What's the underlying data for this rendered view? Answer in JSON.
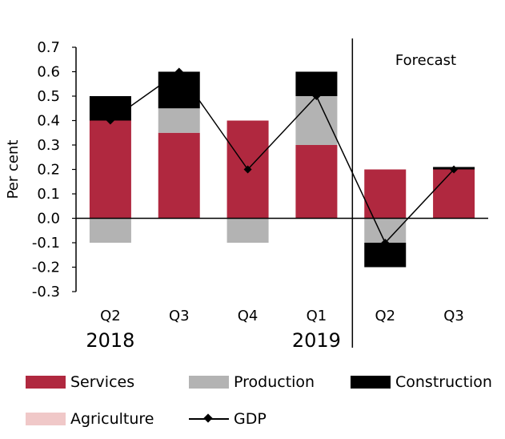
{
  "colors": {
    "services": "#b0283f",
    "production": "#b3b3b3",
    "construction": "#000000",
    "agriculture": "#f0c8c8",
    "gdp": "#000000"
  },
  "chart_data": {
    "type": "bar",
    "stacked": true,
    "categories": [
      "Q2",
      "Q3",
      "Q4",
      "Q1",
      "Q2",
      "Q3"
    ],
    "year_labels": [
      "2018",
      "2019"
    ],
    "ylabel": "Per cent",
    "ylim": [
      -0.3,
      0.7
    ],
    "yticks": [
      "0.7",
      "0.6",
      "0.5",
      "0.4",
      "0.3",
      "0.2",
      "0.1",
      "0.0",
      "-0.1",
      "-0.2",
      "-0.3"
    ],
    "annotation": "Forecast",
    "series": [
      {
        "name": "Services",
        "values": [
          0.4,
          0.35,
          0.4,
          0.3,
          0.2,
          0.2
        ]
      },
      {
        "name": "Production",
        "values": [
          -0.1,
          0.1,
          -0.1,
          0.2,
          -0.1,
          0.0
        ]
      },
      {
        "name": "Construction",
        "values": [
          0.1,
          0.15,
          0.0,
          0.1,
          -0.1,
          0.01
        ]
      },
      {
        "name": "Agriculture",
        "values": [
          0.0,
          0.0,
          0.0,
          0.0,
          0.0,
          0.0
        ]
      }
    ],
    "line": {
      "name": "GDP",
      "values": [
        0.4,
        0.6,
        0.2,
        0.5,
        -0.1,
        0.2
      ]
    }
  }
}
